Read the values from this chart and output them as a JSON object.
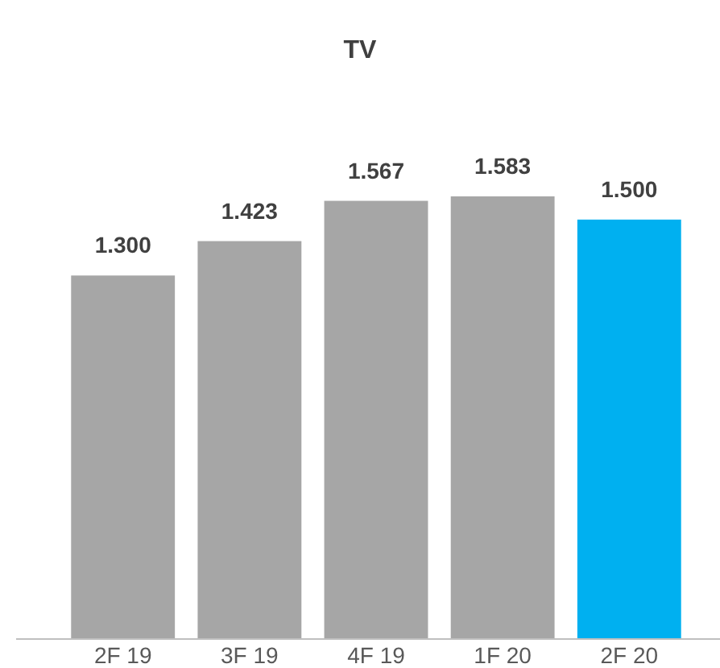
{
  "chart_data": {
    "type": "bar",
    "title": "TV",
    "categories": [
      "2F 19",
      "3F 19",
      "4F 19",
      "1F 20",
      "2F 20"
    ],
    "values": [
      1.3,
      1.423,
      1.567,
      1.583,
      1.5
    ],
    "value_labels": [
      "1.300",
      "1.423",
      "1.567",
      "1.583",
      "1.500"
    ],
    "colors": [
      "#a6a6a6",
      "#a6a6a6",
      "#a6a6a6",
      "#a6a6a6",
      "#00b0f0"
    ]
  }
}
